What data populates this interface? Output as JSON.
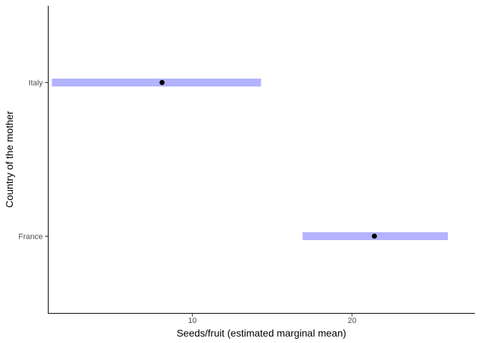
{
  "chart_data": {
    "type": "interval",
    "xlabel": "Seeds/fruit (estimated marginal mean)",
    "ylabel": "Country of the mother",
    "x_ticks": [
      10,
      20
    ],
    "xlim": [
      0.95,
      27.7
    ],
    "categories": [
      "France",
      "Italy"
    ],
    "points": [
      {
        "category": "Italy",
        "estimate": 8.1,
        "lower": 1.2,
        "upper": 14.3
      },
      {
        "category": "France",
        "estimate": 21.4,
        "lower": 16.9,
        "upper": 26.0
      }
    ],
    "grid": false,
    "colors": {
      "interval": "#b3b3ff",
      "point": "#000000",
      "axis": "#000000"
    }
  }
}
